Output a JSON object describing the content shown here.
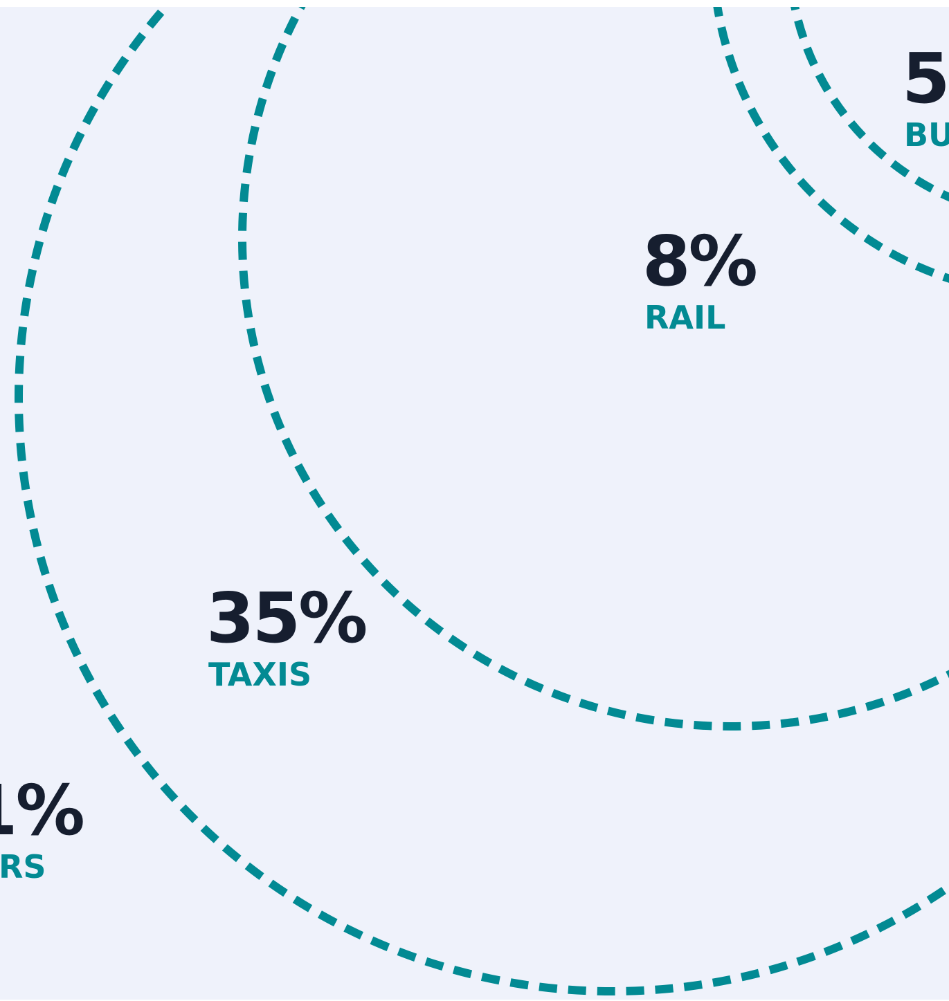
{
  "colors": {
    "background": "#eff2fb",
    "ring": "#028a93",
    "percent_text": "#161e2f",
    "label_text": "#028a93"
  },
  "stats": [
    {
      "id": "cars",
      "percent": "1%",
      "label": "RS"
    },
    {
      "id": "taxis",
      "percent": "35%",
      "label": "TAXIS"
    },
    {
      "id": "rail",
      "percent": "8%",
      "label": "RAIL"
    },
    {
      "id": "bus",
      "percent": "5",
      "label": "BU"
    }
  ]
}
